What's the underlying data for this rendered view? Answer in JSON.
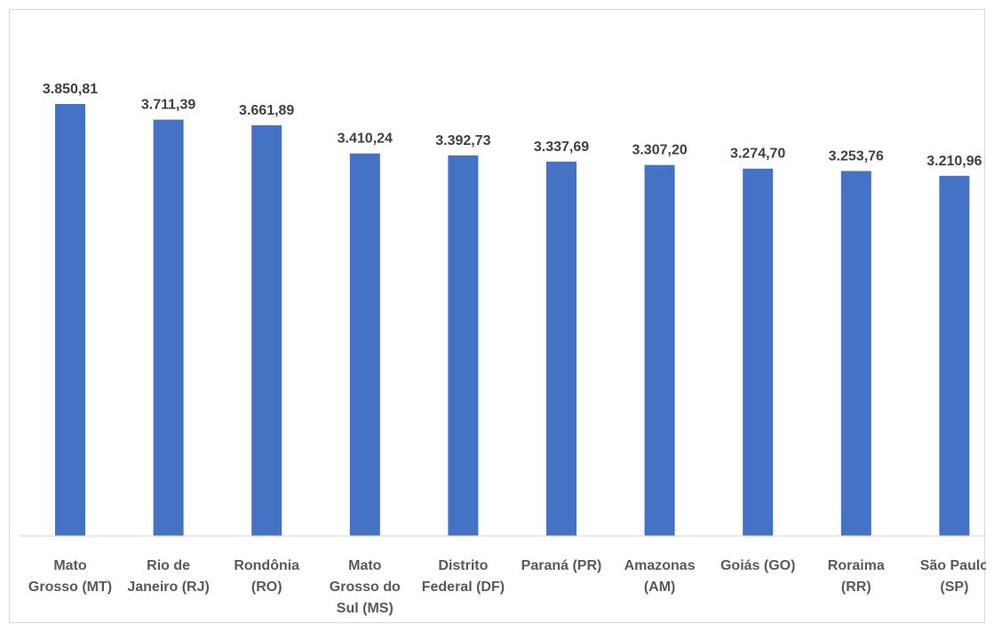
{
  "chart_data": {
    "type": "bar",
    "title": "",
    "xlabel": "",
    "ylabel": "",
    "ylim": [
      0,
      4000
    ],
    "grid": false,
    "legend": "none",
    "bar_color": "#4472C4",
    "axis_color": "#d9d9d9",
    "categories": [
      [
        "Mato",
        "Grosso (MT)"
      ],
      [
        "Rio de",
        "Janeiro (RJ)"
      ],
      [
        "Rondônia",
        "(RO)"
      ],
      [
        "Mato",
        "Grosso do",
        "Sul (MS)"
      ],
      [
        "Distrito",
        "Federal (DF)"
      ],
      [
        "Paraná (PR)"
      ],
      [
        "Amazonas",
        "(AM)"
      ],
      [
        "Goiás (GO)"
      ],
      [
        "Roraima",
        "(RR)"
      ],
      [
        "São Paulo",
        "(SP)"
      ]
    ],
    "values": [
      3850.81,
      3711.39,
      3661.89,
      3410.24,
      3392.73,
      3337.69,
      3307.2,
      3274.7,
      3253.76,
      3210.96
    ],
    "value_labels": [
      "3.850,81",
      "3.711,39",
      "3.661,89",
      "3.410,24",
      "3.392,73",
      "3.337,69",
      "3.307,20",
      "3.274,70",
      "3.253,76",
      "3.210,96"
    ]
  }
}
